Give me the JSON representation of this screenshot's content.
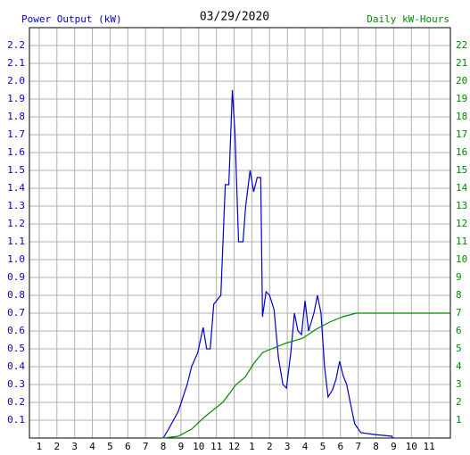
{
  "chart_data": {
    "type": "line",
    "title": "03/29/2020",
    "y_label": "Power Output (kW)",
    "y2_label": "Daily kW-Hours",
    "xlim": [
      0.45,
      24.2
    ],
    "xticks": [
      1,
      2,
      3,
      4,
      5,
      6,
      7,
      8,
      9,
      10,
      11,
      12,
      {
        "value": 13,
        "label": "1"
      },
      {
        "value": 14,
        "label": "2"
      },
      {
        "value": 15,
        "label": "3"
      },
      {
        "value": 16,
        "label": "4"
      },
      {
        "value": 17,
        "label": "5"
      },
      {
        "value": 18,
        "label": "6"
      },
      {
        "value": 19,
        "label": "7"
      },
      {
        "value": 20,
        "label": "8"
      },
      {
        "value": 21,
        "label": "9"
      },
      {
        "value": 22,
        "label": "10"
      },
      {
        "value": 23,
        "label": "11"
      }
    ],
    "ylim": [
      0,
      2.3
    ],
    "yticks": [
      0.1,
      0.2,
      0.3,
      0.4,
      0.5,
      0.6,
      0.7,
      0.8,
      0.9,
      {
        "value": 1,
        "label": "1.0"
      },
      1.1,
      1.2,
      1.3,
      1.4,
      1.5,
      1.6,
      1.7,
      1.8,
      1.9,
      {
        "value": 2,
        "label": "2.0"
      },
      2.1,
      2.2
    ],
    "y2lim": [
      0,
      23
    ],
    "y2ticks": [
      1,
      2,
      3,
      4,
      5,
      6,
      7,
      8,
      9,
      10,
      11,
      12,
      13,
      14,
      15,
      16,
      17,
      18,
      19,
      20,
      21,
      22
    ],
    "grid": true,
    "series": [
      {
        "name": "Power Output (kW)",
        "color": "#0000cc",
        "axis": "y",
        "x": [
          8.0,
          8.3,
          8.85,
          9.35,
          9.6,
          9.95,
          10.25,
          10.45,
          10.65,
          10.85,
          11.25,
          11.5,
          11.7,
          11.9,
          12.05,
          12.25,
          12.5,
          12.65,
          12.9,
          13.1,
          13.3,
          13.5,
          13.6,
          13.8,
          14.0,
          14.25,
          14.5,
          14.75,
          14.95,
          15.2,
          15.4,
          15.6,
          15.8,
          16.0,
          16.2,
          16.5,
          16.7,
          16.9,
          17.1,
          17.3,
          17.55,
          17.75,
          17.95,
          18.15,
          18.35,
          18.55,
          18.8,
          19.15,
          19.9,
          20.9,
          20.95
        ],
        "values": [
          0,
          0.05,
          0.15,
          0.3,
          0.4,
          0.48,
          0.62,
          0.5,
          0.5,
          0.75,
          0.8,
          1.42,
          1.42,
          1.95,
          1.7,
          1.1,
          1.1,
          1.3,
          1.5,
          1.38,
          1.46,
          1.46,
          0.68,
          0.82,
          0.8,
          0.72,
          0.45,
          0.3,
          0.28,
          0.48,
          0.7,
          0.6,
          0.58,
          0.77,
          0.6,
          0.7,
          0.8,
          0.7,
          0.4,
          0.23,
          0.27,
          0.33,
          0.43,
          0.35,
          0.3,
          0.2,
          0.08,
          0.03,
          0.02,
          0.01,
          0
        ]
      },
      {
        "name": "Daily kW-Hours",
        "color": "#008800",
        "axis": "y2",
        "x": [
          7.99,
          8.84,
          9.6,
          10.35,
          11.36,
          12.11,
          12.61,
          13.12,
          13.62,
          14.12,
          14.87,
          15.88,
          16.63,
          17.39,
          18.14,
          18.89,
          24.17
        ],
        "values": [
          0,
          0.1,
          0.5,
          1.2,
          2.0,
          3.0,
          3.4,
          4.2,
          4.8,
          5.0,
          5.3,
          5.6,
          6.1,
          6.5,
          6.8,
          7.0,
          7.0
        ]
      }
    ]
  }
}
